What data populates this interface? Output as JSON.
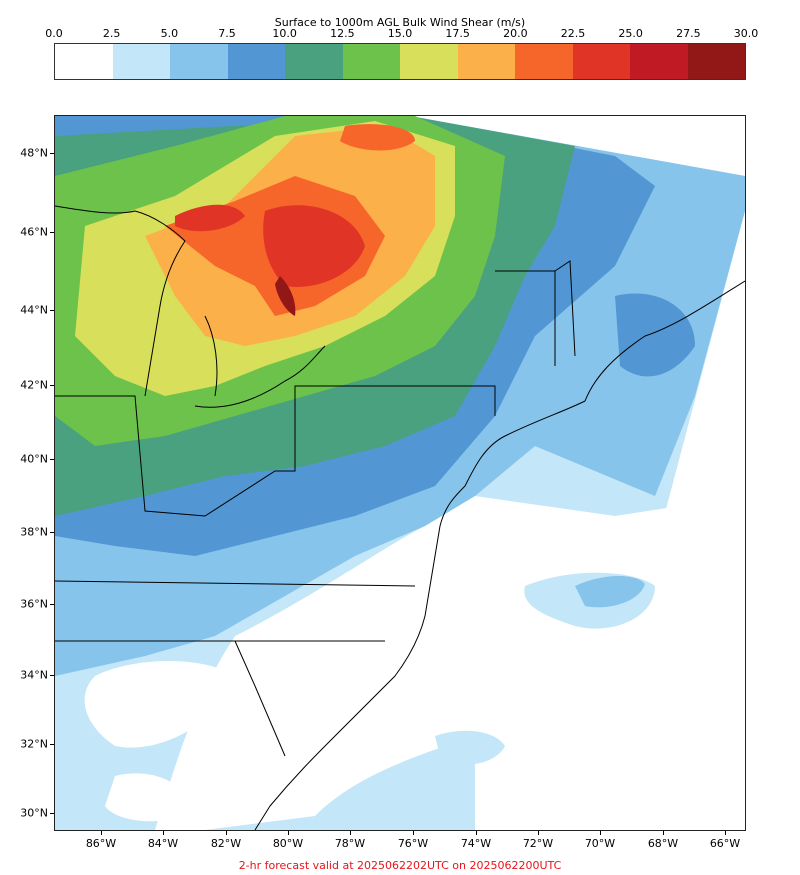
{
  "colorbar": {
    "title": "Surface to 1000m AGL Bulk Wind Shear (m/s)",
    "ticks": [
      "0.0",
      "2.5",
      "5.0",
      "7.5",
      "10.0",
      "12.5",
      "15.0",
      "17.5",
      "20.0",
      "22.5",
      "25.0",
      "27.5",
      "30.0"
    ],
    "colors": [
      "#ffffff",
      "#c3e6f8",
      "#86c4eb",
      "#5297d3",
      "#4aa17f",
      "#6cc24a",
      "#d8df5a",
      "#fbb049",
      "#f6652a",
      "#e03526",
      "#c01a24",
      "#921818"
    ]
  },
  "map": {
    "lat_labels": [
      "48°N",
      "46°N",
      "44°N",
      "42°N",
      "40°N",
      "38°N",
      "36°N",
      "34°N",
      "32°N",
      "30°N"
    ],
    "lon_labels": [
      "86°W",
      "84°W",
      "82°W",
      "80°W",
      "78°W",
      "76°W",
      "74°W",
      "72°W",
      "70°W",
      "68°W",
      "66°W"
    ],
    "field_level_colors": {
      "calm": "#ffffff",
      "light": "#c3e6f8",
      "low": "#86c4eb",
      "moderate": "#5297d3",
      "teal": "#4aa17f",
      "green": "#6cc24a",
      "yellow": "#d8df5a",
      "orange": "#fbb049",
      "red_orange": "#f6652a",
      "red": "#e03526",
      "dark_red": "#921818"
    }
  },
  "footer": {
    "text": "2-hr forecast valid at 2025062202UTC on 2025062200UTC"
  }
}
